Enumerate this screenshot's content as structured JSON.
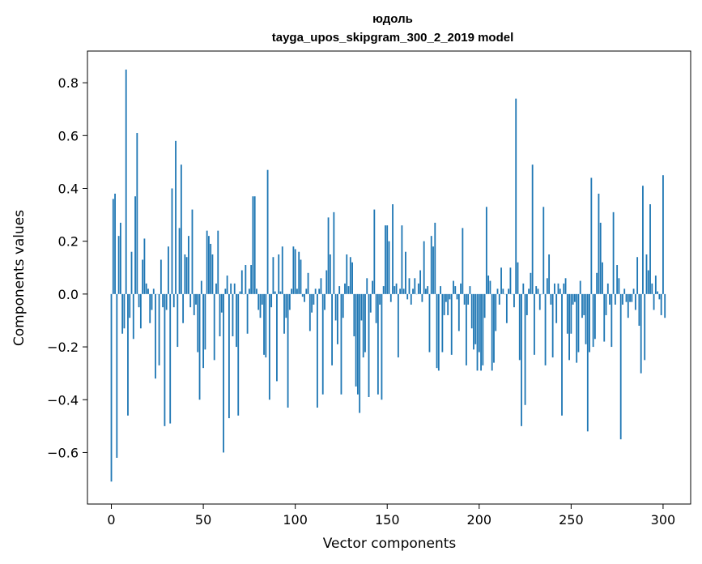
{
  "chart_data": {
    "type": "bar",
    "title": "юдоль",
    "subtitle": "tayga_upos_skipgram_300_2_2019 model",
    "xlabel": "Vector components",
    "ylabel": "Components values",
    "xlim": [
      -13,
      315
    ],
    "ylim": [
      -0.795,
      0.92
    ],
    "xticks": [
      0,
      50,
      100,
      150,
      200,
      250,
      300
    ],
    "yticks": [
      -0.6,
      -0.4,
      -0.2,
      0.0,
      0.2,
      0.4,
      0.6,
      0.8
    ],
    "xtick_labels": [
      "0",
      "50",
      "100",
      "150",
      "200",
      "250",
      "300"
    ],
    "ytick_labels": [
      "−0.6",
      "−0.4",
      "−0.2",
      "0.0",
      "0.2",
      "0.4",
      "0.6",
      "0.8"
    ],
    "grid": false,
    "bar_color": "#1f77b4",
    "values": [
      -0.71,
      0.36,
      0.38,
      -0.62,
      0.22,
      0.27,
      -0.15,
      -0.13,
      0.85,
      -0.46,
      -0.09,
      0.16,
      -0.17,
      0.37,
      0.61,
      -0.05,
      -0.13,
      0.13,
      0.21,
      0.04,
      0.02,
      -0.11,
      -0.06,
      0.02,
      -0.32,
      0.0,
      -0.27,
      0.13,
      -0.05,
      -0.5,
      -0.06,
      0.18,
      -0.49,
      0.4,
      -0.05,
      0.58,
      -0.2,
      0.25,
      0.49,
      -0.11,
      0.15,
      0.14,
      0.22,
      -0.05,
      0.32,
      -0.08,
      -0.04,
      -0.22,
      -0.4,
      0.05,
      -0.28,
      -0.21,
      0.24,
      0.22,
      0.19,
      0.15,
      -0.25,
      0.04,
      0.24,
      -0.16,
      -0.07,
      -0.6,
      0.02,
      0.07,
      -0.47,
      0.04,
      -0.16,
      0.04,
      -0.2,
      -0.46,
      0.01,
      0.09,
      0.0,
      0.11,
      -0.15,
      0.02,
      0.11,
      0.37,
      0.37,
      0.02,
      -0.06,
      -0.09,
      -0.04,
      -0.23,
      -0.24,
      0.47,
      -0.4,
      -0.05,
      0.14,
      0.01,
      -0.33,
      0.15,
      0.01,
      0.18,
      -0.15,
      -0.09,
      -0.43,
      -0.06,
      0.02,
      0.18,
      0.17,
      0.02,
      0.16,
      0.13,
      -0.01,
      -0.03,
      0.02,
      0.08,
      -0.14,
      -0.07,
      -0.04,
      0.02,
      -0.43,
      0.02,
      0.06,
      -0.38,
      -0.06,
      0.09,
      0.29,
      0.15,
      -0.27,
      0.31,
      -0.1,
      -0.19,
      0.03,
      -0.38,
      -0.09,
      0.04,
      0.15,
      0.03,
      0.14,
      0.12,
      -0.16,
      -0.35,
      -0.38,
      -0.45,
      -0.1,
      -0.24,
      -0.22,
      0.06,
      -0.39,
      -0.07,
      0.05,
      0.32,
      -0.11,
      -0.38,
      -0.04,
      -0.4,
      0.03,
      0.26,
      0.26,
      0.2,
      -0.03,
      0.34,
      0.03,
      0.04,
      -0.24,
      0.02,
      0.26,
      0.02,
      0.16,
      -0.02,
      0.06,
      -0.04,
      0.02,
      0.06,
      0.0,
      0.04,
      0.09,
      -0.03,
      0.2,
      0.02,
      0.03,
      -0.22,
      0.22,
      0.18,
      0.27,
      -0.28,
      -0.29,
      0.03,
      -0.22,
      -0.08,
      -0.03,
      -0.08,
      -0.02,
      -0.23,
      0.05,
      0.03,
      -0.02,
      -0.14,
      0.04,
      0.25,
      -0.04,
      -0.27,
      -0.04,
      0.03,
      -0.13,
      -0.21,
      -0.19,
      -0.29,
      -0.22,
      -0.29,
      -0.27,
      -0.09,
      0.33,
      0.07,
      0.05,
      -0.29,
      -0.26,
      -0.14,
      0.02,
      -0.04,
      0.1,
      0.02,
      0.0,
      -0.11,
      0.02,
      0.1,
      0.0,
      -0.05,
      0.74,
      0.12,
      -0.25,
      -0.5,
      0.04,
      -0.42,
      -0.08,
      0.02,
      0.08,
      0.49,
      -0.23,
      0.03,
      0.02,
      -0.06,
      0.0,
      0.33,
      -0.27,
      0.06,
      0.15,
      -0.04,
      -0.24,
      0.04,
      -0.11,
      0.04,
      0.02,
      -0.46,
      0.04,
      0.06,
      -0.15,
      -0.25,
      -0.15,
      -0.04,
      -0.03,
      -0.26,
      -0.22,
      0.05,
      -0.09,
      -0.08,
      -0.19,
      -0.52,
      -0.22,
      0.44,
      -0.2,
      -0.17,
      0.08,
      0.38,
      0.27,
      0.12,
      -0.18,
      -0.08,
      0.04,
      -0.04,
      -0.2,
      0.31,
      -0.04,
      0.11,
      0.06,
      -0.55,
      -0.04,
      0.02,
      -0.03,
      -0.09,
      -0.03,
      -0.03,
      0.02,
      -0.06,
      0.14,
      -0.12,
      -0.3,
      0.41,
      -0.25,
      0.15,
      0.09,
      0.34,
      0.04,
      -0.06,
      0.07,
      0.01,
      -0.02,
      -0.08,
      0.45,
      -0.09
    ]
  }
}
